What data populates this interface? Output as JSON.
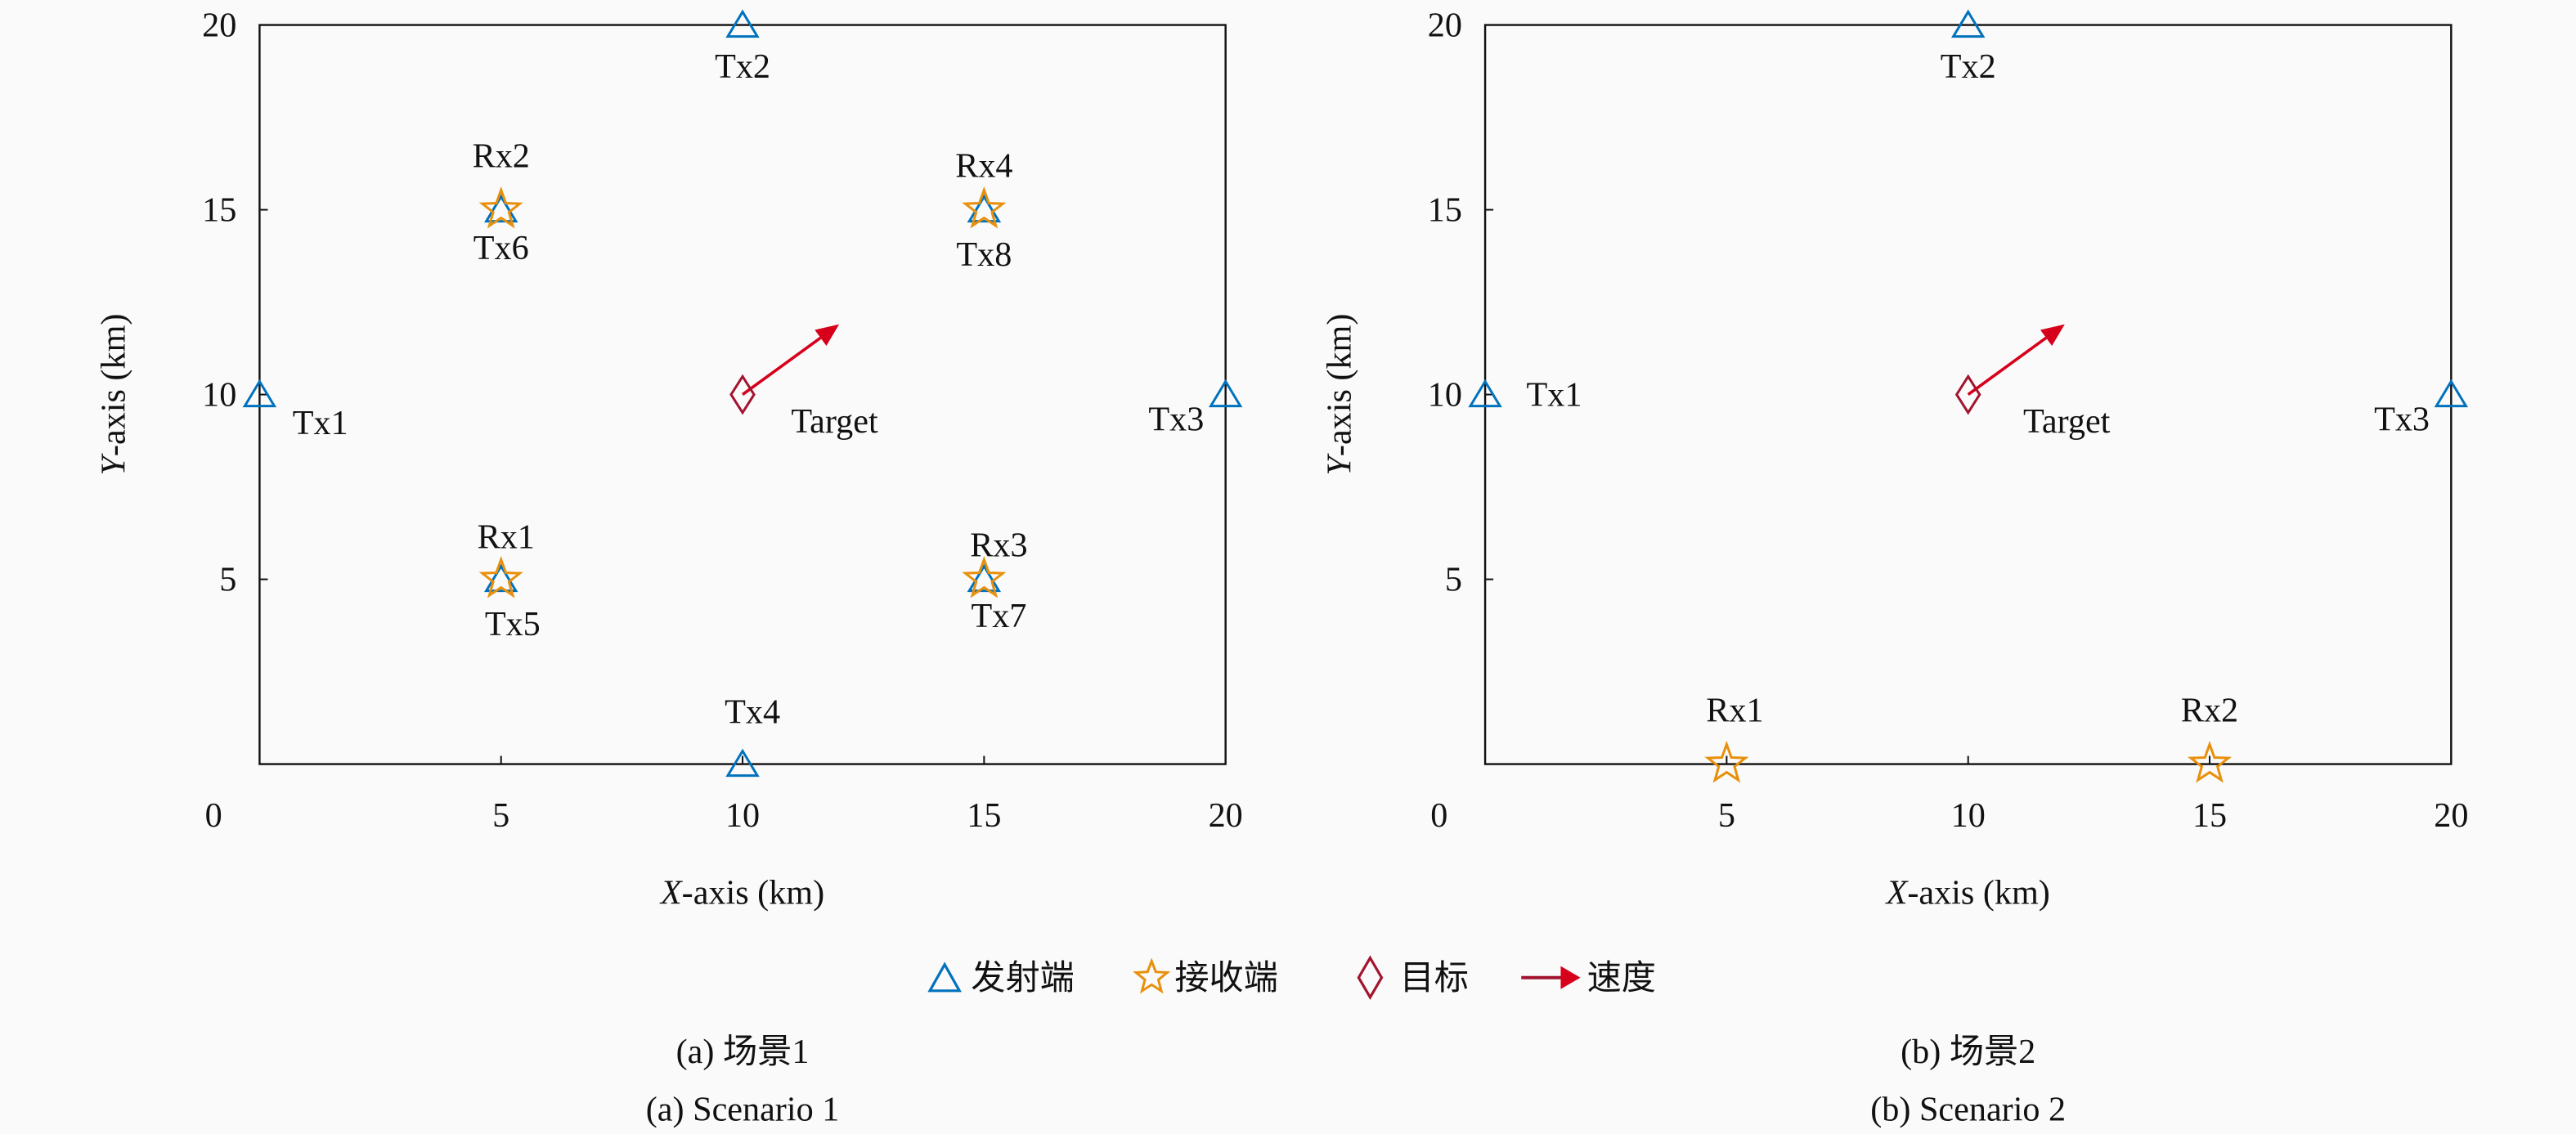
{
  "chart_data": [
    {
      "type": "scatter",
      "caption_cn": "(a) 场景1",
      "caption_en": "(a) Scenario 1",
      "xlabel_var": "X",
      "xlabel_rest": "-axis (km)",
      "ylabel_var": "Y",
      "ylabel_rest": "-axis (km)",
      "xlim": [
        0,
        20
      ],
      "ylim": [
        0,
        20
      ],
      "xticks": [
        "0",
        "5",
        "10",
        "15",
        "20"
      ],
      "yticks": [
        "5",
        "10",
        "15",
        "20"
      ],
      "grid": false,
      "transmitters": [
        {
          "label": "Tx1",
          "x": 0,
          "y": 10
        },
        {
          "label": "Tx2",
          "x": 10,
          "y": 20
        },
        {
          "label": "Tx3",
          "x": 20,
          "y": 10
        },
        {
          "label": "Tx4",
          "x": 10,
          "y": 0
        },
        {
          "label": "Tx5",
          "x": 5,
          "y": 5
        },
        {
          "label": "Tx6",
          "x": 5,
          "y": 15
        },
        {
          "label": "Tx7",
          "x": 15,
          "y": 5
        },
        {
          "label": "Tx8",
          "x": 15,
          "y": 15
        }
      ],
      "receivers": [
        {
          "label": "Rx1",
          "x": 5,
          "y": 5
        },
        {
          "label": "Rx2",
          "x": 5,
          "y": 15
        },
        {
          "label": "Rx3",
          "x": 15,
          "y": 5
        },
        {
          "label": "Rx4",
          "x": 15,
          "y": 15
        }
      ],
      "target": {
        "label": "Target",
        "x": 10,
        "y": 10
      },
      "velocity": {
        "from": [
          10,
          10
        ],
        "to": [
          12,
          11.9
        ]
      }
    },
    {
      "type": "scatter",
      "caption_cn": "(b) 场景2",
      "caption_en": "(b) Scenario 2",
      "xlabel_var": "X",
      "xlabel_rest": "-axis (km)",
      "ylabel_var": "Y",
      "ylabel_rest": "-axis (km)",
      "xlim": [
        0,
        20
      ],
      "ylim": [
        0,
        20
      ],
      "xticks": [
        "0",
        "5",
        "10",
        "15",
        "20"
      ],
      "yticks": [
        "5",
        "10",
        "15",
        "20"
      ],
      "grid": false,
      "transmitters": [
        {
          "label": "Tx1",
          "x": 0,
          "y": 10
        },
        {
          "label": "Tx2",
          "x": 10,
          "y": 20
        },
        {
          "label": "Tx3",
          "x": 20,
          "y": 10
        }
      ],
      "receivers": [
        {
          "label": "Rx1",
          "x": 5,
          "y": 0
        },
        {
          "label": "Rx2",
          "x": 15,
          "y": 0
        }
      ],
      "target": {
        "label": "Target",
        "x": 10,
        "y": 10
      },
      "velocity": {
        "from": [
          10,
          10
        ],
        "to": [
          12,
          11.9
        ]
      }
    }
  ],
  "legend": {
    "placement": "bottom-center",
    "items": [
      {
        "label": "发射端",
        "icon": "triangle-icon",
        "color": "#0072BD"
      },
      {
        "label": "接收端",
        "icon": "star-icon",
        "color": "#E8900C"
      },
      {
        "label": "目标",
        "icon": "diamond-icon",
        "color": "#A2142F"
      },
      {
        "label": "速度",
        "icon": "arrow-icon",
        "color": "#D7001B"
      }
    ]
  },
  "colors": {
    "tx": "#0072BD",
    "rx": "#E8900C",
    "target": "#A2142F",
    "velocity": "#D7001B"
  }
}
